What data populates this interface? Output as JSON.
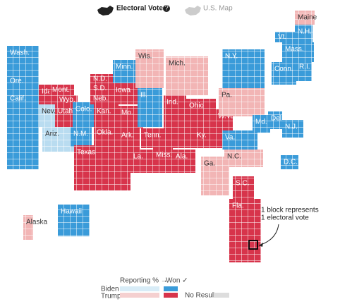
{
  "header": {
    "electoral_votes": "Electoral Votes",
    "help": "?",
    "us_map": "U.S. Map"
  },
  "states": [
    "Wash.",
    "Ore.",
    "Calif.",
    "Nev.",
    "Idaho",
    "Mont.",
    "Wyo.",
    "Utah",
    "Ariz.",
    "Colo.",
    "N.M.",
    "N.D.",
    "S.D.",
    "Neb.",
    "Kan.",
    "Okla.",
    "Texas",
    "Minn.",
    "Iowa",
    "Mo.",
    "Ark.",
    "La.",
    "Wis.",
    "Ill.",
    "Miss.",
    "Tenn.",
    "Ala.",
    "Mich.",
    "Ind.",
    "Ohio",
    "Ky.",
    "W.Va.",
    "Ga.",
    "Pa.",
    "N.Y.",
    "Va.",
    "N.C.",
    "S.C.",
    "Fla.",
    "Md.",
    "Del.",
    "N.J.",
    "D.C.",
    "Conn.",
    "R.I.",
    "Mass.",
    "Vt.",
    "N.H.",
    "Maine",
    "Alaska",
    "Hawaii"
  ],
  "annotation": {
    "line1": "1 block represents",
    "line2": "1 electoral vote"
  },
  "legend": {
    "reporting": "Reporting % →",
    "won": "Won ✓",
    "biden": "Biden",
    "trump": "Trump",
    "no_results": "No Results"
  }
}
